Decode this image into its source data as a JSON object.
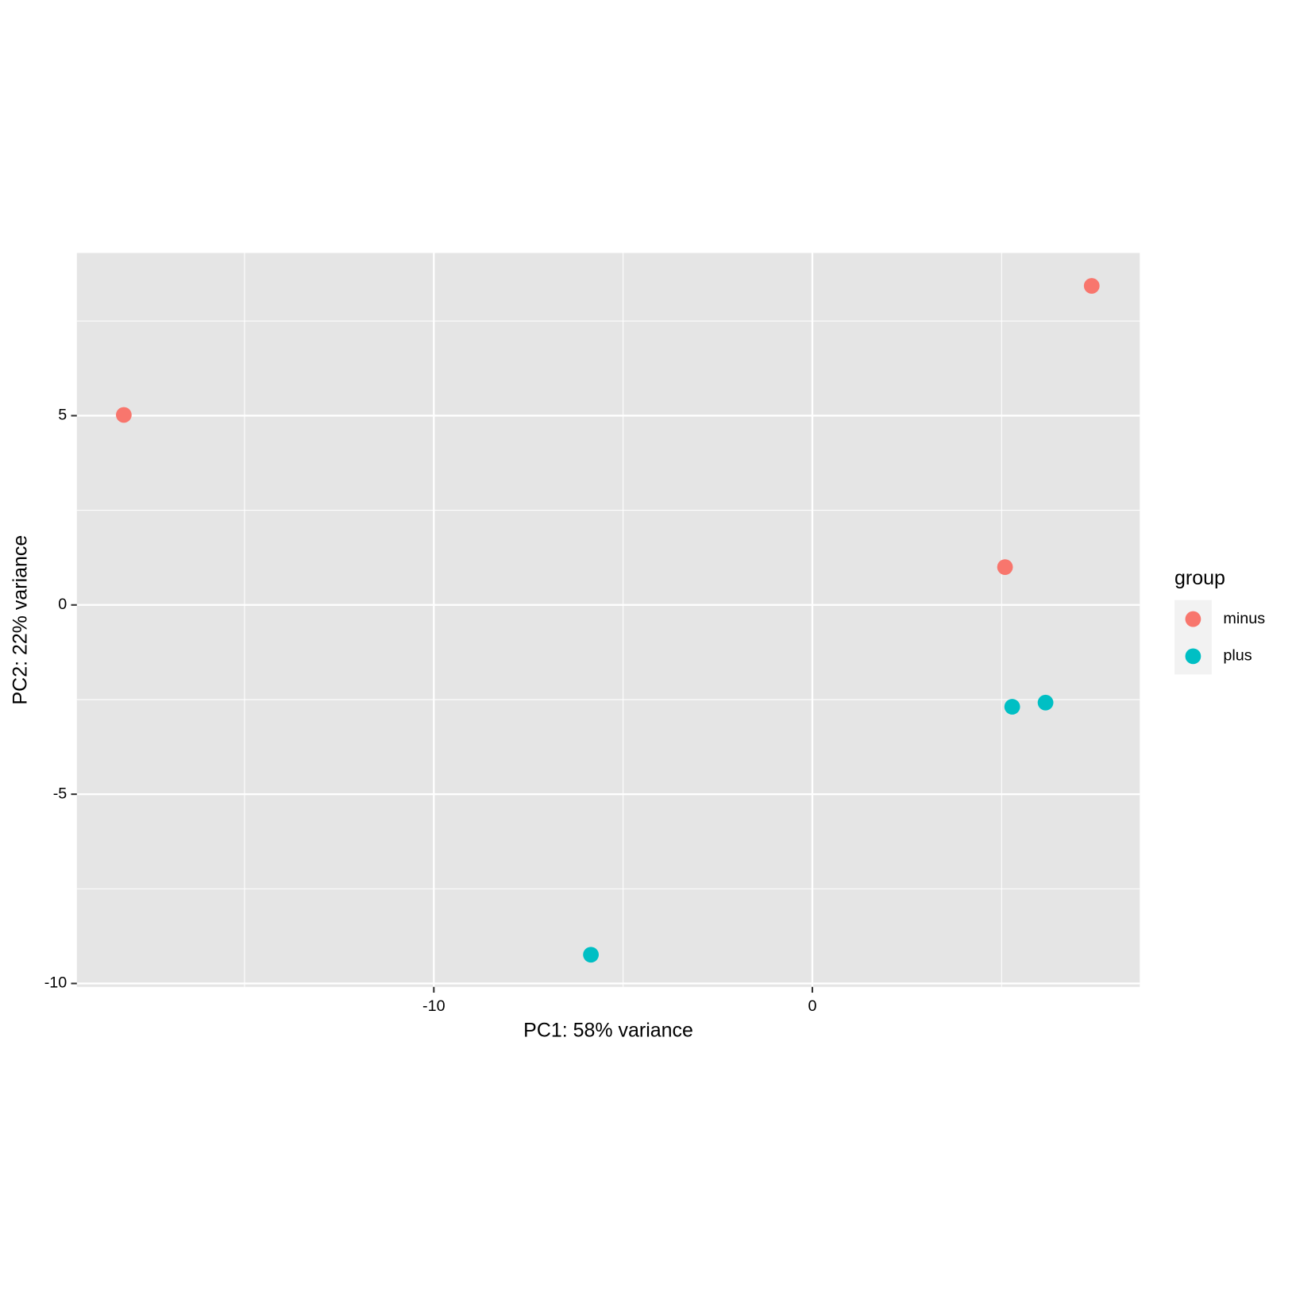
{
  "chart_data": {
    "type": "scatter",
    "x_label": "PC1: 58% variance",
    "y_label": "PC2: 22% variance",
    "legend_title": "group",
    "legend_position": "right",
    "xlim": [
      -19.43,
      8.65
    ],
    "ylim": [
      -10.09,
      9.3
    ],
    "xticks": [
      -10,
      0
    ],
    "yticks": [
      5,
      0,
      -5,
      -10
    ],
    "x_minor_grid": [
      -15,
      -5,
      5
    ],
    "y_minor_grid": [
      7.5,
      2.5,
      -2.5,
      -7.5
    ],
    "grid": true,
    "panel_color": "#e5e5e5",
    "series": [
      {
        "name": "minus",
        "color": "#F8766D",
        "x": [
          -18.19,
          7.38,
          5.09
        ],
        "values": [
          5.02,
          8.43,
          1.0
        ]
      },
      {
        "name": "plus",
        "color": "#00BFC4",
        "x": [
          -5.85,
          5.28,
          6.16
        ],
        "values": [
          -9.24,
          -2.69,
          -2.58
        ]
      }
    ]
  }
}
